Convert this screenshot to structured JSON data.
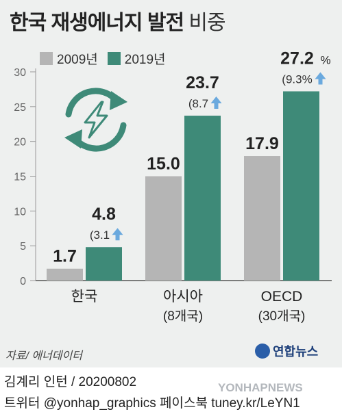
{
  "title": {
    "main": "한국 재생에너지 발전",
    "sub": "비중"
  },
  "legend": [
    {
      "label": "2009년",
      "color": "#b5b5b5"
    },
    {
      "label": "2019년",
      "color": "#3e8a78"
    }
  ],
  "chart_data": {
    "type": "bar",
    "title": "한국 재생에너지 발전 비중",
    "categories": [
      "한국",
      "아시아",
      "OECD"
    ],
    "category_sublabels": [
      "",
      "(8개국)",
      "(30개국)"
    ],
    "series": [
      {
        "name": "2009년",
        "values": [
          1.7,
          15.0,
          17.9
        ],
        "labels": [
          "1.7",
          "15.0",
          "17.9"
        ],
        "color": "#b5b5b5"
      },
      {
        "name": "2019년",
        "values": [
          4.8,
          23.7,
          27.2
        ],
        "labels": [
          "4.8",
          "23.7",
          "27.2"
        ],
        "color": "#3e8a78"
      }
    ],
    "change_labels": [
      "(3.1",
      "(8.7",
      "(9.3%"
    ],
    "percent_suffix": "%",
    "yticks": [
      "0",
      "5",
      "10",
      "15",
      "20",
      "25",
      "30"
    ],
    "ylim": [
      0,
      30
    ],
    "grid": false,
    "legend_position": "top-left"
  },
  "source": "자료/ 에너데이터",
  "logo": "연합뉴스",
  "footer": {
    "line1": "김계리 인턴 / 20200802",
    "line2": "트위터 @yonhap_graphics  페이스북 tuney.kr/LeYN1"
  },
  "watermark": "YONHAPNEWS",
  "colors": {
    "background": "#eef0ef",
    "arrow": "#6aa9de",
    "icon": "#3e8a78"
  }
}
